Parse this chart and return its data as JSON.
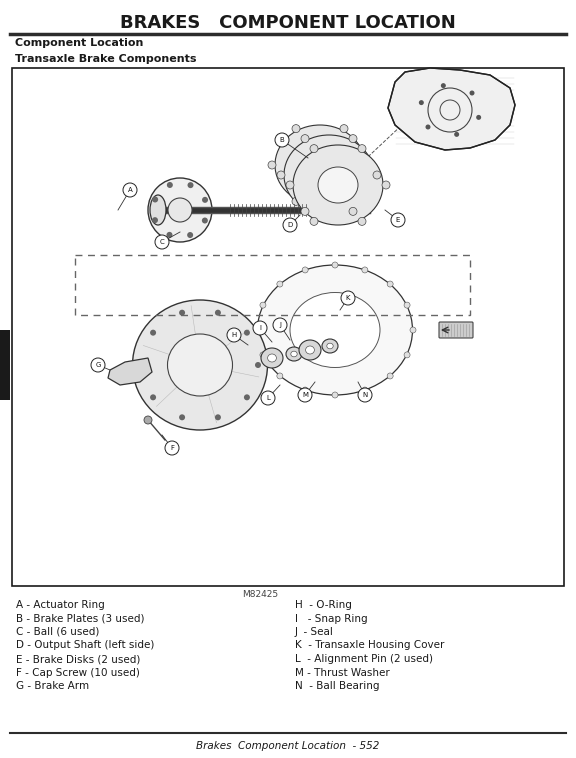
{
  "title": "BRAKES   COMPONENT LOCATION",
  "section_label": "Component Location",
  "subsection_label": "Transaxle Brake Components",
  "image_label": "M82425",
  "footer_text": "Brakes  Component Location  - 552",
  "legend_left": [
    "A - Actuator Ring",
    "B - Brake Plates (3 used)",
    "C - Ball (6 used)",
    "D - Output Shaft (left side)",
    "E - Brake Disks (2 used)",
    "F - Cap Screw (10 used)",
    "G - Brake Arm"
  ],
  "legend_right": [
    "H  - O-Ring",
    "I   - Snap Ring",
    "J  - Seal",
    "K  - Transaxle Housing Cover",
    "L  - Alignment Pin (2 used)",
    "M - Thrust Washer",
    "N  - Ball Bearing"
  ],
  "bg_color": "#ffffff",
  "title_color": "#1a1a1a",
  "text_color": "#1a1a1a",
  "border_color": "#1a1a1a",
  "line_color": "#2c2c2c",
  "diagram_bg": "#ffffff",
  "tab_color": "#1a1a1a"
}
